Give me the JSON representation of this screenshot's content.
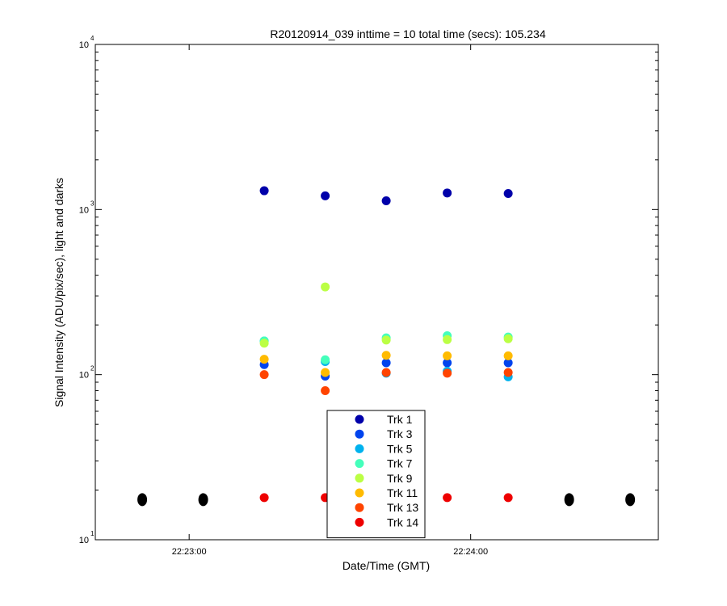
{
  "chart_data": {
    "type": "scatter",
    "title": "R20120914_039 inttime = 10 total time (secs): 105.234",
    "xlabel": "Date/Time (GMT)",
    "ylabel": "Signal Intensity (ADU/pix/sec), light and darks",
    "y_scale": "log",
    "ylim": [
      10,
      10000
    ],
    "xlim": [
      "22:22:40",
      "22:24:40"
    ],
    "x_ticks": [
      "22:23:00",
      "22:24:00"
    ],
    "y_ticks": [
      {
        "base": "10",
        "exp": "1"
      },
      {
        "base": "10",
        "exp": "2"
      },
      {
        "base": "10",
        "exp": "3"
      },
      {
        "base": "10",
        "exp": "4"
      }
    ],
    "legend_position": "bottom-center",
    "grid": false,
    "light_times": [
      "22:23:16",
      "22:23:29",
      "22:23:42",
      "22:23:55",
      "22:24:08"
    ],
    "series": [
      {
        "name": "Trk 1",
        "color": "#0000aa",
        "values": [
          1300,
          1210,
          1130,
          1260,
          1250
        ]
      },
      {
        "name": "Trk 3",
        "color": "#0044ee",
        "values": [
          115,
          98,
          118,
          118,
          118
        ]
      },
      {
        "name": "Trk 5",
        "color": "#00b2ee",
        "values": [
          160,
          120,
          102,
          105,
          97
        ]
      },
      {
        "name": "Trk 7",
        "color": "#44ffbb",
        "values": [
          160,
          123,
          167,
          172,
          169
        ]
      },
      {
        "name": "Trk 9",
        "color": "#bbff44",
        "values": [
          155,
          340,
          162,
          163,
          165
        ]
      },
      {
        "name": "Trk 11",
        "color": "#ffbb00",
        "values": [
          124,
          103,
          131,
          130,
          130
        ]
      },
      {
        "name": "Trk 13",
        "color": "#ff4400",
        "values": [
          100,
          80,
          103,
          102,
          103
        ]
      },
      {
        "name": "Trk 14",
        "color": "#ee0000",
        "values": [
          18,
          18,
          18,
          18,
          18
        ]
      }
    ],
    "dark_series": {
      "color": "#000000",
      "times": [
        "22:22:50",
        "22:23:03",
        "22:24:21",
        "22:24:34"
      ],
      "values": [
        17.5,
        17.5,
        17.5,
        17.5
      ]
    }
  }
}
